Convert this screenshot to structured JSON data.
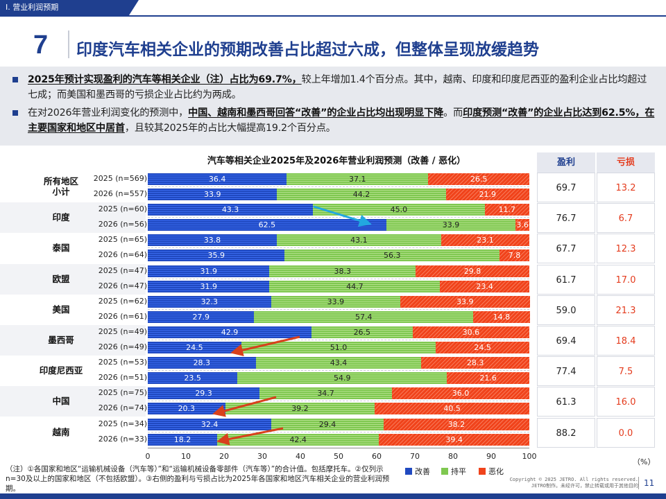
{
  "section_tab": "Ⅰ. 营业利润预期",
  "slide_number": "7",
  "title": "印度汽车相关企业的预期改善占比超过六成，但整体呈现放缓趋势",
  "summary": {
    "bullet1_bold": "2025年预计实现盈利的汽车等相关企业（注）占比为69.7%，",
    "bullet1_rest": "较上年增加1.4个百分点。其中，越南、印度和印度尼西亚的盈利企业占比均超过七成；而美国和墨西哥的亏损企业占比约为两成。",
    "bullet2_pre": "在对2026年营业利润变化的预测中，",
    "bullet2_bold1": "中国、越南和墨西哥回答“改善”的企业占比均出现明显下降",
    "bullet2_mid": "。而",
    "bullet2_bold2": "印度预测“改善”的企业占比达到62.5%，在主要国家和地区中居首",
    "bullet2_end": "，且较其2025年的占比大幅提高19.2个百分点。"
  },
  "chart_data": {
    "type": "bar",
    "stacked": true,
    "orientation": "horizontal",
    "title": "汽车等相关企业2025年及2026年营业利润预测（改善 / 恶化）",
    "xlim": [
      0,
      100
    ],
    "ticks": [
      "0",
      "10",
      "20",
      "30",
      "40",
      "50",
      "60",
      "70",
      "80",
      "90",
      "100"
    ],
    "unit_label": "（%）",
    "legend": [
      {
        "name": "改善",
        "color": "#2049c0"
      },
      {
        "name": "持平",
        "color": "#7fc850"
      },
      {
        "name": "恶化",
        "color": "#f0431b"
      }
    ],
    "groups": [
      {
        "name": "所有地区\n小计",
        "profit": "69.7",
        "loss": "13.2",
        "rows": [
          {
            "label": "2025 (n=569)",
            "values": [
              36.4,
              37.1,
              26.5
            ]
          },
          {
            "label": "2026 (n=557)",
            "values": [
              33.9,
              44.2,
              21.9
            ]
          }
        ]
      },
      {
        "name": "印度",
        "profit": "76.7",
        "loss": "6.7",
        "rows": [
          {
            "label": "2025 (n=60)",
            "values": [
              43.3,
              45.0,
              11.7
            ]
          },
          {
            "label": "2026 (n=56)",
            "values": [
              62.5,
              33.9,
              3.6
            ]
          }
        ]
      },
      {
        "name": "泰国",
        "profit": "67.7",
        "loss": "12.3",
        "rows": [
          {
            "label": "2025 (n=65)",
            "values": [
              33.8,
              43.1,
              23.1
            ]
          },
          {
            "label": "2026 (n=64)",
            "values": [
              35.9,
              56.3,
              7.8
            ]
          }
        ]
      },
      {
        "name": "欧盟",
        "profit": "61.7",
        "loss": "17.0",
        "rows": [
          {
            "label": "2025 (n=47)",
            "values": [
              31.9,
              38.3,
              29.8
            ]
          },
          {
            "label": "2026 (n=47)",
            "values": [
              31.9,
              44.7,
              23.4
            ]
          }
        ]
      },
      {
        "name": "美国",
        "profit": "59.0",
        "loss": "21.3",
        "rows": [
          {
            "label": "2025 (n=62)",
            "values": [
              32.3,
              33.9,
              33.9
            ]
          },
          {
            "label": "2026 (n=61)",
            "values": [
              27.9,
              57.4,
              14.8
            ]
          }
        ]
      },
      {
        "name": "墨西哥",
        "profit": "69.4",
        "loss": "18.4",
        "rows": [
          {
            "label": "2025 (n=49)",
            "values": [
              42.9,
              26.5,
              30.6
            ]
          },
          {
            "label": "2026 (n=49)",
            "values": [
              24.5,
              51.0,
              24.5
            ]
          }
        ]
      },
      {
        "name": "印度尼西亚",
        "profit": "77.4",
        "loss": "7.5",
        "rows": [
          {
            "label": "2025 (n=53)",
            "values": [
              28.3,
              43.4,
              28.3
            ]
          },
          {
            "label": "2026 (n=51)",
            "values": [
              23.5,
              54.9,
              21.6
            ]
          }
        ]
      },
      {
        "name": "中国",
        "profit": "61.3",
        "loss": "16.0",
        "rows": [
          {
            "label": "2025 (n=75)",
            "values": [
              29.3,
              34.7,
              36.0
            ]
          },
          {
            "label": "2026 (n=74)",
            "values": [
              20.3,
              39.2,
              40.5
            ]
          }
        ]
      },
      {
        "name": "越南",
        "profit": "88.2",
        "loss": "0.0",
        "rows": [
          {
            "label": "2025 (n=34)",
            "values": [
              32.4,
              29.4,
              38.2
            ]
          },
          {
            "label": "2026 (n=33)",
            "values": [
              18.2,
              42.4,
              39.4
            ]
          }
        ]
      }
    ]
  },
  "side_table": {
    "profit_header": "盈利",
    "loss_header": "亏损"
  },
  "footnote": "（注）①各国家和地区“运输机械设备（汽车等）”和“运输机械设备零部件（汽车等）”的合计值。包括摩托车。②仅列示n=30及以上的国家和地区（不包括欧盟）。③右侧的盈利与亏损占比为2025年各国家和地区汽车相关企业的营业利润预期。",
  "copyright_line1": "Copyright © 2025 JETRO. All rights reserved.",
  "copyright_line2": "JETRO制作。未经许可，禁止转载或用于其他目的",
  "page_number": "11",
  "colors": {
    "brand": "#1f3f8f",
    "loss": "#e43b1d"
  }
}
